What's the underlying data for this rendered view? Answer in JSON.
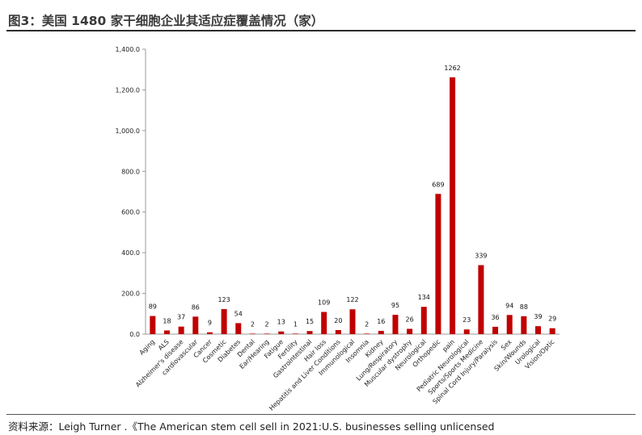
{
  "title": "图3：美国 1480 家干细胞企业其适应症覆盖情况（家）",
  "source": "资料来源：Leigh Turner .《The American stem cell sell in 2021:U.S. businesses selling unlicensed",
  "colors": {
    "bar": "#c00000",
    "axis": "#999999"
  },
  "chart_data": {
    "type": "bar",
    "title": "",
    "xlabel": "",
    "ylabel": "",
    "ylim": [
      0,
      1400
    ],
    "ytick_values": [
      0,
      200,
      400,
      600,
      800,
      1000,
      1200,
      1400
    ],
    "ytick_labels": [
      "0.0",
      "200.0",
      "400.0",
      "600.0",
      "800.0",
      "1,000.0",
      "1,200.0",
      "1,400.0"
    ],
    "grid": false,
    "categories": [
      "Aging",
      "ALS",
      "Alzheimer's disease",
      "cardiovascular",
      "Cancer",
      "Cosmetic",
      "Diabetes",
      "Dental",
      "Ear/Hearing",
      "Fatigue",
      "Fertility",
      "Gastrointestinal",
      "Hair loss",
      "Hepatitis and Liver Conditions",
      "Immunological",
      "Insomnia",
      "Kidney",
      "Lung/Respiratory",
      "Muscular dystrophy",
      "Neurological",
      "Orthopedic",
      "pain",
      "Pediatric Neurological",
      "Sports/Sports Medicine",
      "Spinal Cord Injury/Paralysis",
      "Sex",
      "Skin/Wounds",
      "Urological",
      "Vision/Optic"
    ],
    "values": [
      89,
      18,
      37,
      86,
      9,
      123,
      54,
      2,
      2,
      13,
      1,
      15,
      109,
      20,
      122,
      2,
      16,
      95,
      26,
      134,
      689,
      1262,
      23,
      339,
      36,
      94,
      88,
      39,
      29
    ]
  }
}
